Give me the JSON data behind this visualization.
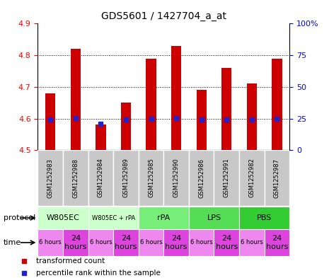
{
  "title": "GDS5601 / 1427704_a_at",
  "samples": [
    "GSM1252983",
    "GSM1252988",
    "GSM1252984",
    "GSM1252989",
    "GSM1252985",
    "GSM1252990",
    "GSM1252986",
    "GSM1252991",
    "GSM1252982",
    "GSM1252987"
  ],
  "transformed_count": [
    4.68,
    4.82,
    4.58,
    4.65,
    4.79,
    4.83,
    4.69,
    4.76,
    4.71,
    4.79
  ],
  "percentile_rank_y": [
    4.596,
    4.601,
    4.583,
    4.597,
    4.6,
    4.601,
    4.596,
    4.597,
    4.597,
    4.598
  ],
  "ylim": [
    4.5,
    4.9
  ],
  "yticks_left": [
    4.5,
    4.6,
    4.7,
    4.8,
    4.9
  ],
  "yticks_right_labels": [
    "0",
    "25",
    "50",
    "75",
    "100%"
  ],
  "yticks_right_vals": [
    4.5,
    4.6,
    4.7,
    4.8,
    4.9
  ],
  "bar_color": "#cc0000",
  "dot_color": "#2222cc",
  "grid_lines": [
    4.6,
    4.7,
    4.8
  ],
  "protocols": [
    {
      "label": "W805EC",
      "start": 0,
      "end": 2,
      "color": "#ccffcc"
    },
    {
      "label": "W805EC + rPA",
      "start": 2,
      "end": 4,
      "color": "#ccffcc",
      "fontsize": 6
    },
    {
      "label": "rPA",
      "start": 4,
      "end": 6,
      "color": "#77ee77"
    },
    {
      "label": "LPS",
      "start": 6,
      "end": 8,
      "color": "#55dd55"
    },
    {
      "label": "PBS",
      "start": 8,
      "end": 10,
      "color": "#33cc33"
    }
  ],
  "times": [
    {
      "label": "6 hours",
      "start": 0,
      "end": 1,
      "color": "#ee88ee",
      "fontsize": 6
    },
    {
      "label": "24\nhours",
      "start": 1,
      "end": 2,
      "color": "#dd44dd",
      "fontsize": 8
    },
    {
      "label": "6 hours",
      "start": 2,
      "end": 3,
      "color": "#ee88ee",
      "fontsize": 6
    },
    {
      "label": "24\nhours",
      "start": 3,
      "end": 4,
      "color": "#dd44dd",
      "fontsize": 8
    },
    {
      "label": "6 hours",
      "start": 4,
      "end": 5,
      "color": "#ee88ee",
      "fontsize": 6
    },
    {
      "label": "24\nhours",
      "start": 5,
      "end": 6,
      "color": "#dd44dd",
      "fontsize": 8
    },
    {
      "label": "6 hours",
      "start": 6,
      "end": 7,
      "color": "#ee88ee",
      "fontsize": 6
    },
    {
      "label": "24\nhours",
      "start": 7,
      "end": 8,
      "color": "#dd44dd",
      "fontsize": 8
    },
    {
      "label": "6 hours",
      "start": 8,
      "end": 9,
      "color": "#ee88ee",
      "fontsize": 6
    },
    {
      "label": "24\nhours",
      "start": 9,
      "end": 10,
      "color": "#dd44dd",
      "fontsize": 8
    }
  ],
  "legend_items": [
    {
      "color": "#cc0000",
      "marker": "s",
      "label": "transformed count"
    },
    {
      "color": "#2222cc",
      "marker": "s",
      "label": "percentile rank within the sample"
    }
  ],
  "bg_color": "#ffffff"
}
